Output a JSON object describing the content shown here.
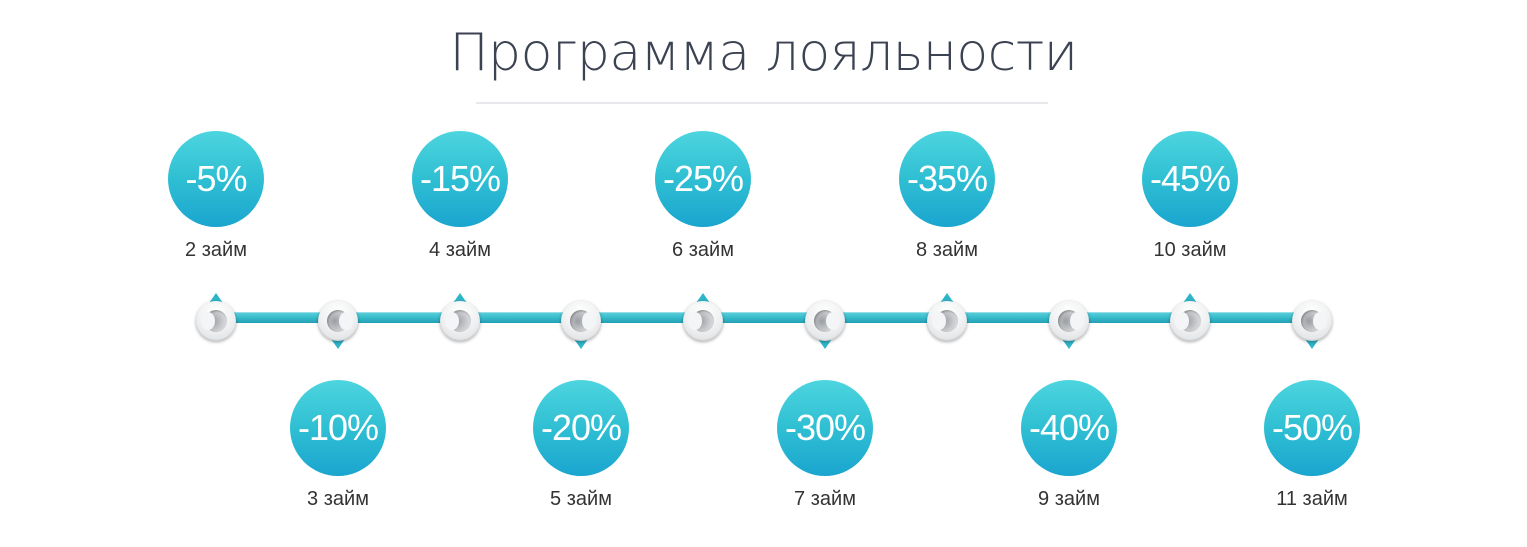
{
  "title": "Программа лояльности",
  "colors": {
    "accent": "#2fbfd3",
    "title_text": "#3b4252"
  },
  "steps": [
    {
      "discount": "-5%",
      "label": "2 займ"
    },
    {
      "discount": "-10%",
      "label": "3 займ"
    },
    {
      "discount": "-15%",
      "label": "4 займ"
    },
    {
      "discount": "-20%",
      "label": "5 займ"
    },
    {
      "discount": "-25%",
      "label": "6 займ"
    },
    {
      "discount": "-30%",
      "label": "7 займ"
    },
    {
      "discount": "-35%",
      "label": "8 займ"
    },
    {
      "discount": "-40%",
      "label": "9 займ"
    },
    {
      "discount": "-45%",
      "label": "10 займ"
    },
    {
      "discount": "-50%",
      "label": "11 займ"
    }
  ]
}
